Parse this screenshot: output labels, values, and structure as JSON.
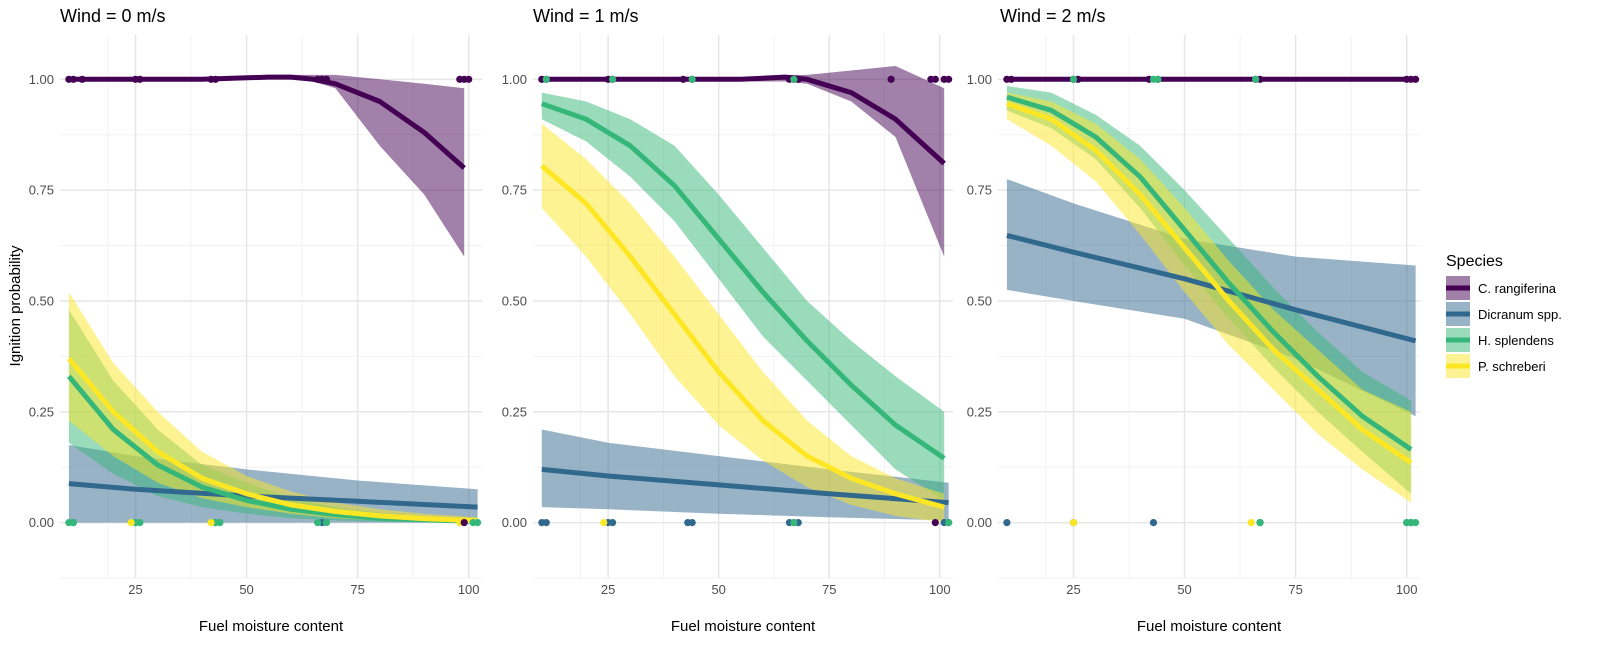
{
  "chart_data": {
    "type": "line",
    "ylabel": "Ignition probability",
    "xlabel": "Fuel moisture content",
    "xlim": [
      8,
      103
    ],
    "ylim": [
      -0.125,
      1.1
    ],
    "x_ticks": [
      25,
      50,
      75,
      100
    ],
    "y_ticks": [
      0.0,
      0.25,
      0.5,
      0.75,
      1.0
    ],
    "y_tick_labels": [
      "0.00",
      "0.25",
      "0.50",
      "0.75",
      "1.00"
    ],
    "legend": {
      "title": "Species",
      "position": "right",
      "entries": [
        {
          "name": "C. rangiferina",
          "color": "#440154"
        },
        {
          "name": "Dicranum spp.",
          "color": "#31688e"
        },
        {
          "name": "H. splendens",
          "color": "#35b779"
        },
        {
          "name": "P. schreberi",
          "color": "#fde725"
        }
      ]
    },
    "panels": [
      {
        "title": "Wind = 0 m/s",
        "series": [
          {
            "name": "C. rangiferina",
            "x": [
              10,
              25,
              40,
              55,
              60,
              65,
              70,
              80,
              90,
              99
            ],
            "y": [
              1.0,
              1.0,
              1.0,
              1.005,
              1.005,
              1.0,
              0.99,
              0.95,
              0.88,
              0.8
            ],
            "lower": [
              1.0,
              1.0,
              1.0,
              1.0,
              1.0,
              0.995,
              0.98,
              0.85,
              0.74,
              0.6
            ],
            "upper": [
              1.0,
              1.0,
              1.0,
              1.01,
              1.01,
              1.01,
              1.01,
              1.0,
              0.99,
              0.98
            ]
          },
          {
            "name": "Dicranum spp.",
            "x": [
              10,
              25,
              50,
              75,
              102
            ],
            "y": [
              0.088,
              0.075,
              0.06,
              0.048,
              0.035
            ],
            "lower": [
              0.0,
              0.0,
              0.0,
              0.0,
              0.0
            ],
            "upper": [
              0.175,
              0.15,
              0.12,
              0.095,
              0.075
            ]
          },
          {
            "name": "H. splendens",
            "x": [
              10,
              20,
              30,
              40,
              50,
              60,
              70,
              80,
              90,
              102
            ],
            "y": [
              0.33,
              0.21,
              0.13,
              0.08,
              0.05,
              0.03,
              0.018,
              0.01,
              0.006,
              0.003
            ],
            "lower": [
              0.18,
              0.11,
              0.06,
              0.035,
              0.02,
              0.01,
              0.005,
              0.002,
              0.001,
              0.0
            ],
            "upper": [
              0.48,
              0.32,
              0.21,
              0.13,
              0.09,
              0.055,
              0.035,
              0.022,
              0.014,
              0.01
            ]
          },
          {
            "name": "P. schreberi",
            "x": [
              10,
              20,
              30,
              40,
              50,
              60,
              70,
              80,
              90,
              102
            ],
            "y": [
              0.37,
              0.25,
              0.16,
              0.1,
              0.065,
              0.04,
              0.025,
              0.015,
              0.009,
              0.004
            ],
            "lower": [
              0.23,
              0.15,
              0.09,
              0.055,
              0.035,
              0.02,
              0.01,
              0.005,
              0.002,
              0.0
            ],
            "upper": [
              0.52,
              0.36,
              0.25,
              0.16,
              0.105,
              0.07,
              0.045,
              0.03,
              0.02,
              0.012
            ]
          }
        ],
        "points": [
          {
            "species": "C. rangiferina",
            "x": [
              10,
              11,
              13,
              25,
              26,
              42,
              43,
              66,
              67,
              68,
              98,
              99,
              100
            ],
            "y": [
              1,
              1,
              1,
              1,
              1,
              1,
              1,
              1,
              1,
              1,
              1,
              1,
              1
            ]
          },
          {
            "species": "Dicranum spp.",
            "x": [
              11,
              25,
              43,
              67
            ],
            "y": [
              0,
              0,
              0,
              0
            ]
          },
          {
            "species": "H. splendens",
            "x": [
              10,
              11,
              25,
              26,
              43,
              44,
              66,
              68,
              101,
              102
            ],
            "y": [
              0,
              0,
              0,
              0,
              0,
              0,
              0,
              0,
              0,
              0
            ]
          },
          {
            "species": "P. schreberi",
            "x": [
              24,
              42,
              98
            ],
            "y": [
              0,
              0,
              0
            ]
          },
          {
            "species": "C. rangiferina",
            "x": [
              99
            ],
            "y": [
              0
            ]
          }
        ]
      },
      {
        "title": "Wind = 1 m/s",
        "series": [
          {
            "name": "C. rangiferina",
            "x": [
              10,
              25,
              40,
              55,
              65,
              70,
              80,
              90,
              101
            ],
            "y": [
              1.0,
              1.0,
              1.0,
              1.0,
              1.005,
              1.0,
              0.97,
              0.91,
              0.81
            ],
            "lower": [
              1.0,
              1.0,
              1.0,
              0.995,
              0.995,
              0.99,
              0.95,
              0.87,
              0.6
            ],
            "upper": [
              1.0,
              1.0,
              1.0,
              1.005,
              1.01,
              1.01,
              1.02,
              1.03,
              0.98
            ]
          },
          {
            "name": "Dicranum spp.",
            "x": [
              10,
              25,
              50,
              75,
              102
            ],
            "y": [
              0.12,
              0.105,
              0.085,
              0.065,
              0.045
            ],
            "lower": [
              0.035,
              0.03,
              0.02,
              0.012,
              0.005
            ],
            "upper": [
              0.21,
              0.18,
              0.15,
              0.12,
              0.09
            ]
          },
          {
            "name": "H. splendens",
            "x": [
              10,
              20,
              30,
              40,
              50,
              60,
              70,
              80,
              90,
              101
            ],
            "y": [
              0.945,
              0.91,
              0.85,
              0.76,
              0.64,
              0.52,
              0.41,
              0.31,
              0.22,
              0.145
            ],
            "lower": [
              0.91,
              0.86,
              0.78,
              0.68,
              0.55,
              0.42,
              0.32,
              0.22,
              0.12,
              0.05
            ],
            "upper": [
              0.97,
              0.95,
              0.91,
              0.85,
              0.74,
              0.62,
              0.5,
              0.41,
              0.33,
              0.25
            ]
          },
          {
            "name": "P. schreberi",
            "x": [
              10,
              20,
              30,
              40,
              50,
              60,
              70,
              80,
              90,
              101
            ],
            "y": [
              0.805,
              0.72,
              0.6,
              0.47,
              0.34,
              0.23,
              0.15,
              0.1,
              0.065,
              0.035
            ],
            "lower": [
              0.71,
              0.6,
              0.47,
              0.33,
              0.22,
              0.14,
              0.08,
              0.04,
              0.015,
              0.0
            ],
            "upper": [
              0.9,
              0.82,
              0.72,
              0.6,
              0.47,
              0.34,
              0.23,
              0.15,
              0.1,
              0.065
            ]
          }
        ],
        "points": [
          {
            "species": "C. rangiferina",
            "x": [
              10,
              11,
              25,
              26,
              42,
              44,
              66,
              67,
              68,
              89,
              98,
              99,
              101,
              102
            ],
            "y": [
              1,
              1,
              1,
              1,
              1,
              1,
              1,
              1,
              1,
              1,
              1,
              1,
              1,
              1
            ]
          },
          {
            "species": "Dicranum spp.",
            "x": [
              10,
              11,
              25,
              26,
              43,
              44,
              66,
              67,
              68,
              101,
              102
            ],
            "y": [
              0,
              0,
              0,
              0,
              0,
              0,
              0,
              0,
              0,
              0,
              0
            ]
          },
          {
            "species": "H. splendens",
            "x": [
              11,
              26,
              44,
              67,
              67,
              102
            ],
            "y": [
              1,
              1,
              1,
              1,
              0,
              0
            ]
          },
          {
            "species": "P. schreberi",
            "x": [
              24
            ],
            "y": [
              0
            ]
          },
          {
            "species": "C. rangiferina",
            "x": [
              99
            ],
            "y": [
              0
            ]
          }
        ]
      },
      {
        "title": "Wind = 2 m/s",
        "series": [
          {
            "name": "C. rangiferina",
            "x": [
              10,
              25,
              50,
              75,
              101
            ],
            "y": [
              1.0,
              1.0,
              1.0,
              1.0,
              1.0
            ],
            "lower": [
              0.998,
              0.998,
              0.998,
              0.998,
              0.998
            ],
            "upper": [
              1.002,
              1.002,
              1.002,
              1.002,
              1.002
            ]
          },
          {
            "name": "Dicranum spp.",
            "x": [
              10,
              25,
              50,
              75,
              102
            ],
            "y": [
              0.648,
              0.61,
              0.55,
              0.48,
              0.41
            ],
            "lower": [
              0.525,
              0.5,
              0.46,
              0.37,
              0.24
            ],
            "upper": [
              0.775,
              0.72,
              0.64,
              0.6,
              0.58
            ]
          },
          {
            "name": "H. splendens",
            "x": [
              10,
              20,
              30,
              40,
              50,
              60,
              70,
              80,
              90,
              101
            ],
            "y": [
              0.96,
              0.93,
              0.87,
              0.78,
              0.66,
              0.54,
              0.43,
              0.33,
              0.24,
              0.165
            ],
            "lower": [
              0.93,
              0.89,
              0.82,
              0.71,
              0.58,
              0.46,
              0.35,
              0.25,
              0.16,
              0.065
            ],
            "upper": [
              0.985,
              0.97,
              0.92,
              0.85,
              0.75,
              0.64,
              0.53,
              0.43,
              0.34,
              0.275
            ]
          },
          {
            "name": "P. schreberi",
            "x": [
              10,
              20,
              30,
              40,
              50,
              60,
              70,
              80,
              90,
              101
            ],
            "y": [
              0.945,
              0.91,
              0.84,
              0.74,
              0.62,
              0.5,
              0.39,
              0.3,
              0.21,
              0.135
            ],
            "lower": [
              0.91,
              0.85,
              0.77,
              0.65,
              0.52,
              0.4,
              0.3,
              0.2,
              0.12,
              0.045
            ],
            "upper": [
              0.97,
              0.95,
              0.9,
              0.82,
              0.71,
              0.59,
              0.48,
              0.39,
              0.3,
              0.25
            ]
          }
        ],
        "points": [
          {
            "species": "C. rangiferina",
            "x": [
              10,
              11,
              25,
              26,
              42,
              44,
              66,
              67,
              100,
              101,
              102
            ],
            "y": [
              1,
              1,
              1,
              1,
              1,
              1,
              1,
              1,
              1,
              1,
              1
            ]
          },
          {
            "species": "Dicranum spp.",
            "x": [
              10,
              25,
              43,
              67,
              101
            ],
            "y": [
              0,
              0,
              0,
              0,
              0
            ]
          },
          {
            "species": "H. splendens",
            "x": [
              25,
              43,
              44,
              66,
              67,
              100,
              101
            ],
            "y": [
              1,
              1,
              1,
              1,
              0,
              0,
              0
            ]
          },
          {
            "species": "H. splendens",
            "x": [
              67,
              100,
              101,
              102
            ],
            "y": [
              0,
              0,
              0,
              0
            ]
          },
          {
            "species": "P. schreberi",
            "x": [
              25,
              65
            ],
            "y": [
              0,
              0
            ]
          }
        ]
      }
    ]
  }
}
